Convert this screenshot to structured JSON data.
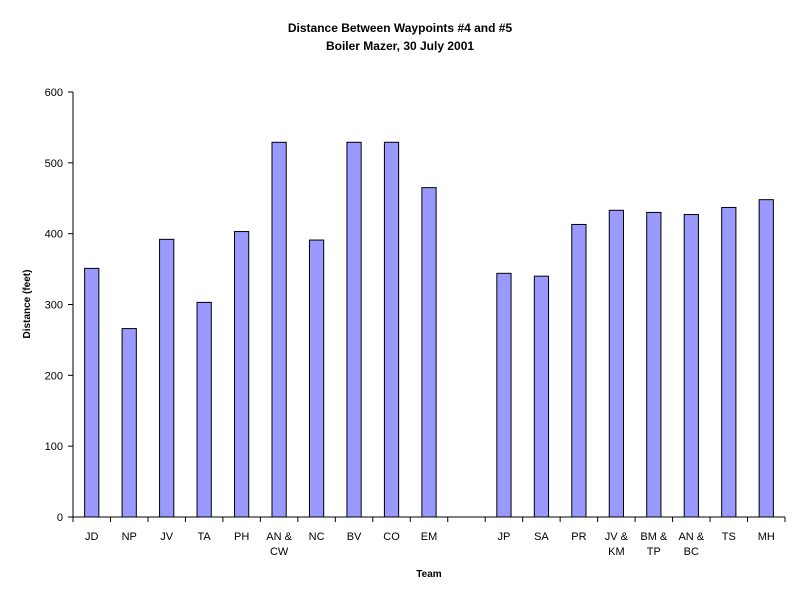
{
  "chart_data": {
    "type": "bar",
    "title": "Distance Between Waypoints #4 and #5",
    "subtitle": "Boiler Mazer, 30 July 2001",
    "xlabel": "Team",
    "ylabel": "Distance (feet)",
    "ylim": [
      0,
      600
    ],
    "yticks": [
      0,
      100,
      200,
      300,
      400,
      500,
      600
    ],
    "grid": false,
    "legend": "none",
    "bar_color": "#9999ff",
    "bar_edge_color": "#000000",
    "categories": [
      [
        "JD"
      ],
      [
        "NP"
      ],
      [
        "JV"
      ],
      [
        "TA"
      ],
      [
        "PH"
      ],
      [
        "AN &",
        "CW"
      ],
      [
        "NC"
      ],
      [
        "BV"
      ],
      [
        "CO"
      ],
      [
        "EM"
      ],
      [
        ""
      ],
      [
        "JP"
      ],
      [
        "SA"
      ],
      [
        "PR"
      ],
      [
        "JV &",
        "KM"
      ],
      [
        "BM &",
        "TP"
      ],
      [
        "AN &",
        "BC"
      ],
      [
        "TS"
      ],
      [
        "MH"
      ]
    ],
    "values": [
      351,
      266,
      392,
      303,
      403,
      529,
      391,
      529,
      529,
      465,
      null,
      344,
      340,
      413,
      433,
      430,
      427,
      437,
      448
    ]
  }
}
